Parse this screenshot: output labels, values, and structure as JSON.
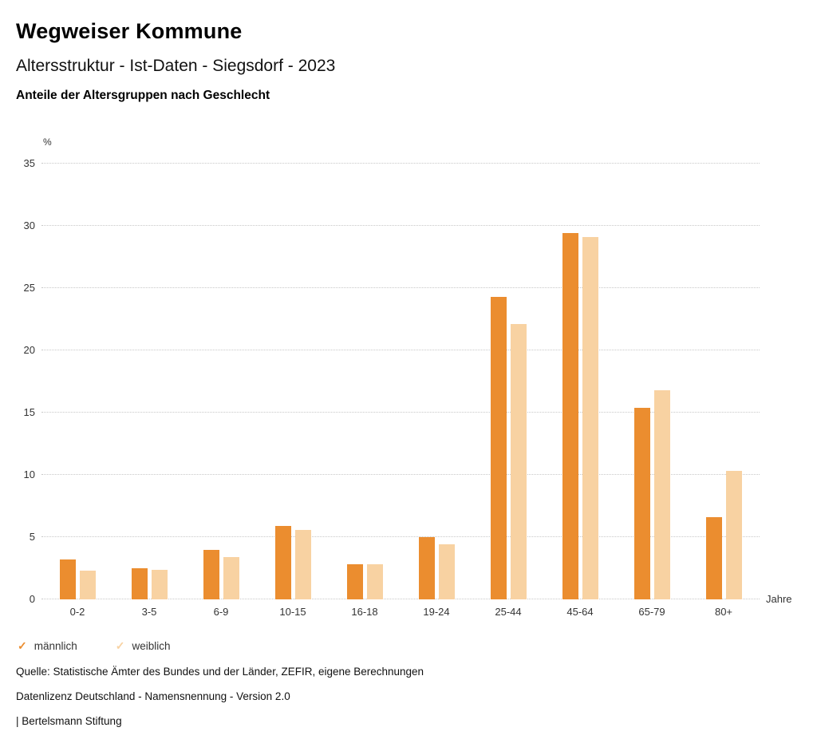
{
  "header": {
    "title": "Wegweiser Kommune",
    "subtitle": "Altersstruktur - Ist-Daten - Siegsdorf - 2023",
    "heading": "Anteile der Altersgruppen nach Geschlecht"
  },
  "chart_data": {
    "type": "bar",
    "title": "Anteile der Altersgruppen nach Geschlecht",
    "categories": [
      "0-2",
      "3-5",
      "6-9",
      "10-15",
      "16-18",
      "19-24",
      "25-44",
      "45-64",
      "65-79",
      "80+"
    ],
    "series": [
      {
        "name": "männlich",
        "color": "#EB8D2F",
        "values": [
          3.2,
          2.5,
          4.0,
          5.9,
          2.8,
          5.0,
          24.3,
          29.4,
          15.4,
          6.6
        ]
      },
      {
        "name": "weiblich",
        "color": "#F8D2A2",
        "values": [
          2.3,
          2.4,
          3.4,
          5.6,
          2.8,
          4.4,
          22.1,
          29.1,
          16.8,
          10.3
        ]
      }
    ],
    "xlabel": "Jahre",
    "ylabel": "%",
    "ylim": [
      0,
      35
    ],
    "ytick_step": 5,
    "grid": true,
    "legend_position": "bottom",
    "legend_check_glyph": "✓"
  },
  "footer": {
    "source": "Quelle: Statistische Ämter des Bundes und der Länder, ZEFIR, eigene Berechnungen",
    "license": "Datenlizenz Deutschland - Namensnennung - Version 2.0",
    "attribution": "| Bertelsmann Stiftung"
  }
}
